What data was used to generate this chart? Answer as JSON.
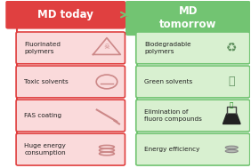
{
  "title_left": "MD today",
  "title_right": "MD\ntomorrow",
  "left_items": [
    "Fluorinated\npolymers",
    "Toxic solvents",
    "FAS coating",
    "Huge energy\nconsumption"
  ],
  "right_items": [
    "Biodegradable\npolymers",
    "Green solvents",
    "Elimination of\nfluoro compounds",
    "Energy efficiency"
  ],
  "left_bg": "#e04040",
  "left_box_bg": "#fadadb",
  "left_box_edge": "#e04040",
  "right_bg": "#72c472",
  "right_box_bg": "#d8f0d0",
  "right_box_edge": "#72c472",
  "title_left_color": "#ffffff",
  "title_right_color": "#ffffff",
  "background_color": "#ffffff",
  "fig_width": 2.82,
  "fig_height": 1.89,
  "dpi": 100
}
